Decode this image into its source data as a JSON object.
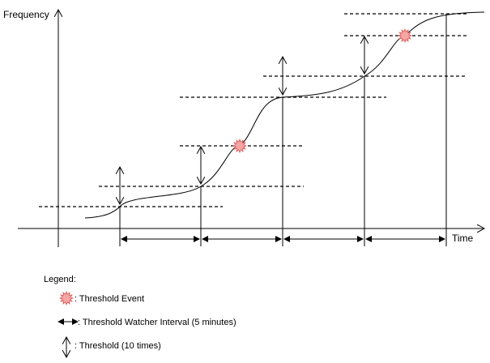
{
  "axes": {
    "y_label": "Frequency",
    "x_label": "Time"
  },
  "legend": {
    "title": "Legend:",
    "items": [
      {
        "icon": "threshold-event-icon",
        "label": ": Threshold Event"
      },
      {
        "icon": "interval-double-arrow-icon",
        "label": ": Threshold Watcher Interval (5 minutes)"
      },
      {
        "icon": "threshold-vertical-arrow-icon",
        "label": ": Threshold (10 times)"
      }
    ]
  },
  "colors": {
    "line": "#000000",
    "event_fill": "#f4a6a6",
    "event_stroke": "#d9534f"
  }
}
